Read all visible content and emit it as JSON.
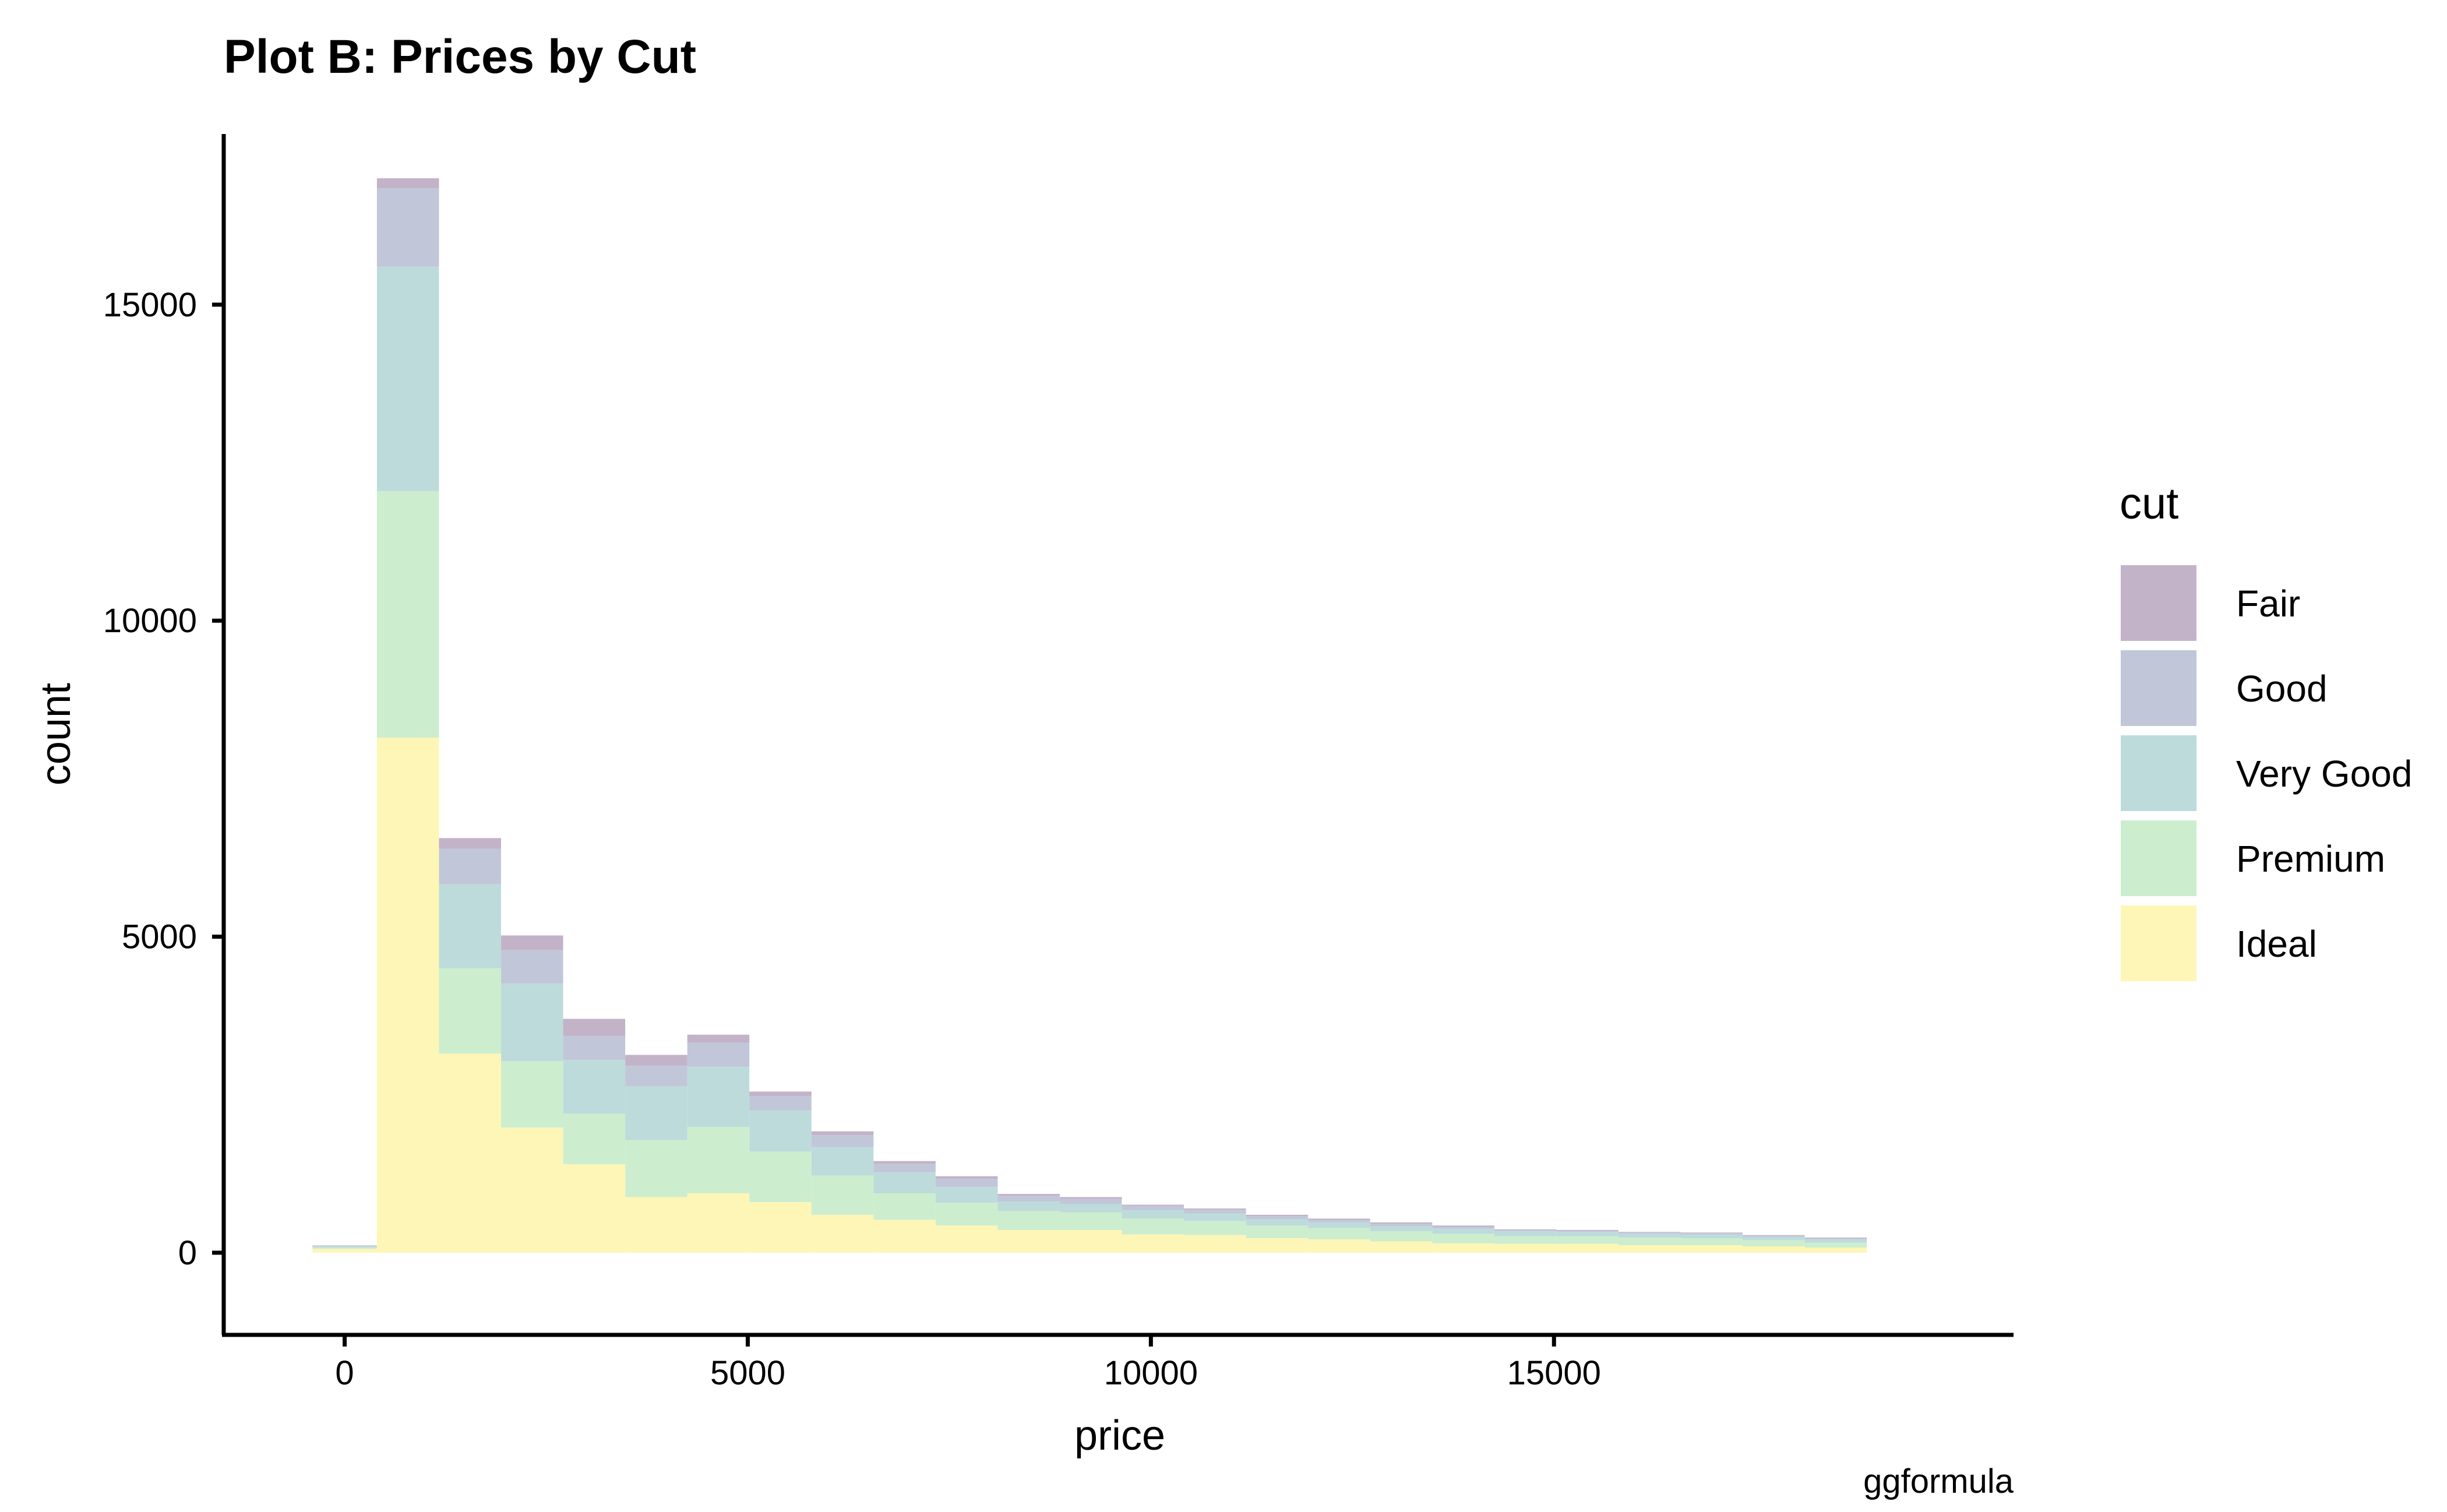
{
  "chart_data": {
    "type": "bar",
    "stacked": true,
    "title": "Plot B: Prices by Cut",
    "xlabel": "price",
    "ylabel": "count",
    "caption": "ggformula",
    "xlim": [
      -1500,
      20700
    ],
    "ylim": [
      -1300,
      17700
    ],
    "x_ticks": [
      0,
      5000,
      10000,
      15000
    ],
    "x_tick_labels": [
      "0",
      "5000",
      "10000",
      "15000"
    ],
    "y_ticks": [
      0,
      5000,
      10000,
      15000
    ],
    "y_tick_labels": [
      "0",
      "5000",
      "10000",
      "15000"
    ],
    "grid": false,
    "legend": {
      "title": "cut",
      "position": "right",
      "entries": [
        "Fair",
        "Good",
        "Very Good",
        "Premium",
        "Ideal"
      ]
    },
    "bins": [
      [
        -400,
        400
      ],
      [
        400,
        1170
      ],
      [
        1170,
        1940
      ],
      [
        1940,
        2710
      ],
      [
        2710,
        3480
      ],
      [
        3480,
        4250
      ],
      [
        4250,
        5020
      ],
      [
        5020,
        5790
      ],
      [
        5790,
        6560
      ],
      [
        6560,
        7330
      ],
      [
        7330,
        8100
      ],
      [
        8100,
        8870
      ],
      [
        8870,
        9640
      ],
      [
        9640,
        10410
      ],
      [
        10410,
        11180
      ],
      [
        11180,
        11950
      ],
      [
        11950,
        12720
      ],
      [
        12720,
        13490
      ],
      [
        13490,
        14260
      ],
      [
        14260,
        15030
      ],
      [
        15030,
        15800
      ],
      [
        15800,
        16570
      ],
      [
        16570,
        17340
      ],
      [
        17340,
        18110
      ],
      [
        18110,
        18880
      ]
    ],
    "series": [
      {
        "name": "Ideal",
        "color": "#FDF6B7",
        "values": [
          60,
          8150,
          3150,
          1980,
          1400,
          880,
          940,
          800,
          600,
          520,
          430,
          360,
          360,
          290,
          280,
          230,
          210,
          180,
          150,
          140,
          140,
          120,
          120,
          100,
          80
        ]
      },
      {
        "name": "Premium",
        "color": "#CDEDCF",
        "values": [
          20,
          3900,
          1350,
          1050,
          800,
          900,
          1050,
          800,
          620,
          420,
          360,
          300,
          280,
          250,
          220,
          200,
          180,
          160,
          150,
          120,
          120,
          120,
          110,
          100,
          80
        ]
      },
      {
        "name": "Very Good",
        "color": "#BEDBDB",
        "values": [
          20,
          3550,
          1330,
          1230,
          850,
          850,
          950,
          650,
          450,
          330,
          250,
          150,
          130,
          130,
          120,
          100,
          90,
          80,
          80,
          80,
          70,
          60,
          60,
          50,
          50
        ]
      },
      {
        "name": "Good",
        "color": "#C1C7D9",
        "values": [
          10,
          1240,
          560,
          530,
          380,
          330,
          380,
          230,
          190,
          140,
          130,
          90,
          80,
          70,
          60,
          50,
          40,
          40,
          30,
          20,
          20,
          20,
          20,
          20,
          20
        ]
      },
      {
        "name": "Fair",
        "color": "#C3B3C8",
        "values": [
          5,
          160,
          170,
          230,
          270,
          170,
          130,
          70,
          60,
          40,
          40,
          30,
          30,
          20,
          20,
          20,
          20,
          20,
          20,
          10,
          10,
          10,
          10,
          10,
          10
        ]
      }
    ]
  }
}
